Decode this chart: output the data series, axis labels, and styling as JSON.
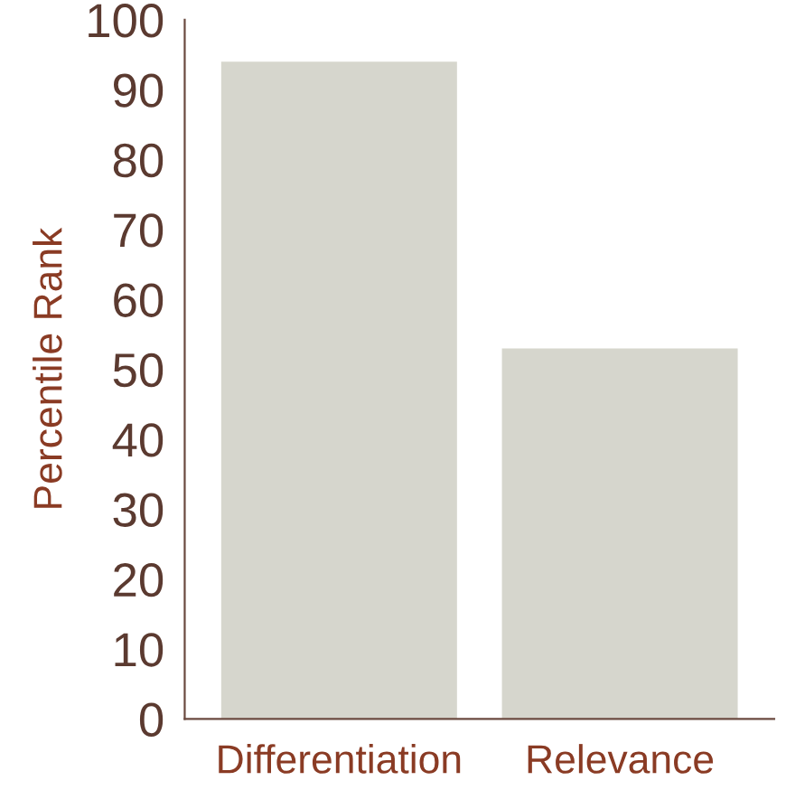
{
  "chart_data": {
    "type": "bar",
    "ylabel": "Percentile Rank",
    "categories": [
      "Differentiation",
      "Relevance"
    ],
    "values": [
      94,
      53
    ],
    "color": "#d6d6cd",
    "ylim": [
      0,
      100
    ],
    "yticks": [
      0,
      10,
      20,
      30,
      40,
      50,
      60,
      70,
      80,
      90,
      100
    ],
    "grid": false,
    "legend": false
  }
}
